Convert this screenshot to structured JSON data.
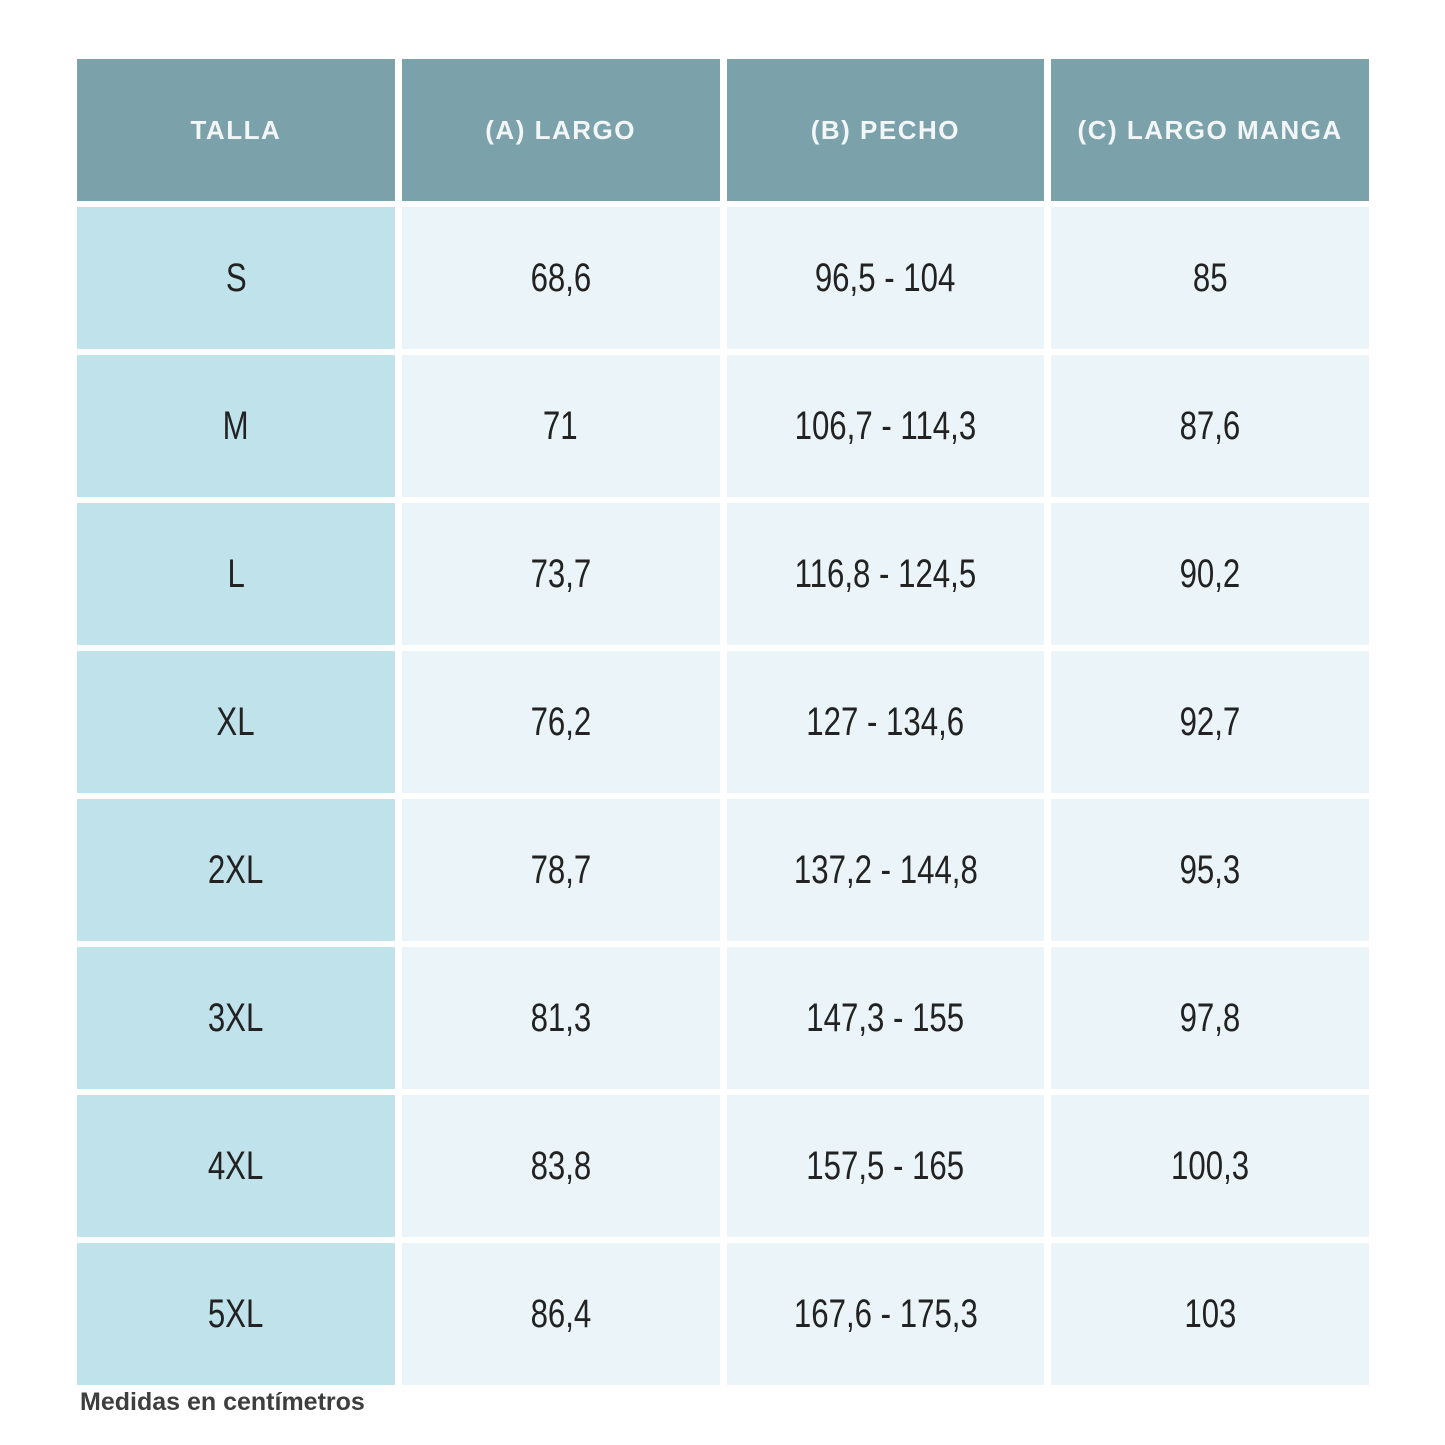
{
  "chart_data": {
    "type": "table",
    "title": "",
    "columns": [
      "TALLA",
      "(A) LARGO",
      "(B) PECHO",
      "(C) LARGO MANGA"
    ],
    "rows": [
      [
        "S",
        "68,6",
        "96,5 - 104",
        "85"
      ],
      [
        "M",
        "71",
        "106,7 - 114,3",
        "87,6"
      ],
      [
        "L",
        "73,7",
        "116,8 - 124,5",
        "90,2"
      ],
      [
        "XL",
        "76,2",
        "127 - 134,6",
        "92,7"
      ],
      [
        "2XL",
        "78,7",
        "137,2 - 144,8",
        "95,3"
      ],
      [
        "3XL",
        "81,3",
        "147,3 - 155",
        "97,8"
      ],
      [
        "4XL",
        "83,8",
        "157,5 - 165",
        "100,3"
      ],
      [
        "5XL",
        "86,4",
        "167,6 - 175,3",
        "103"
      ]
    ],
    "note": "Medidas en centímetros"
  },
  "colors": {
    "header_background": "#7BA1AB",
    "header_text": "#F2F6F7",
    "size_column_background": "#C0E2EA",
    "data_cell_background": "#EBF4F8",
    "cell_text": "#222222",
    "note_text": "#3E3E3E",
    "page_background": "#FFFFFF"
  }
}
